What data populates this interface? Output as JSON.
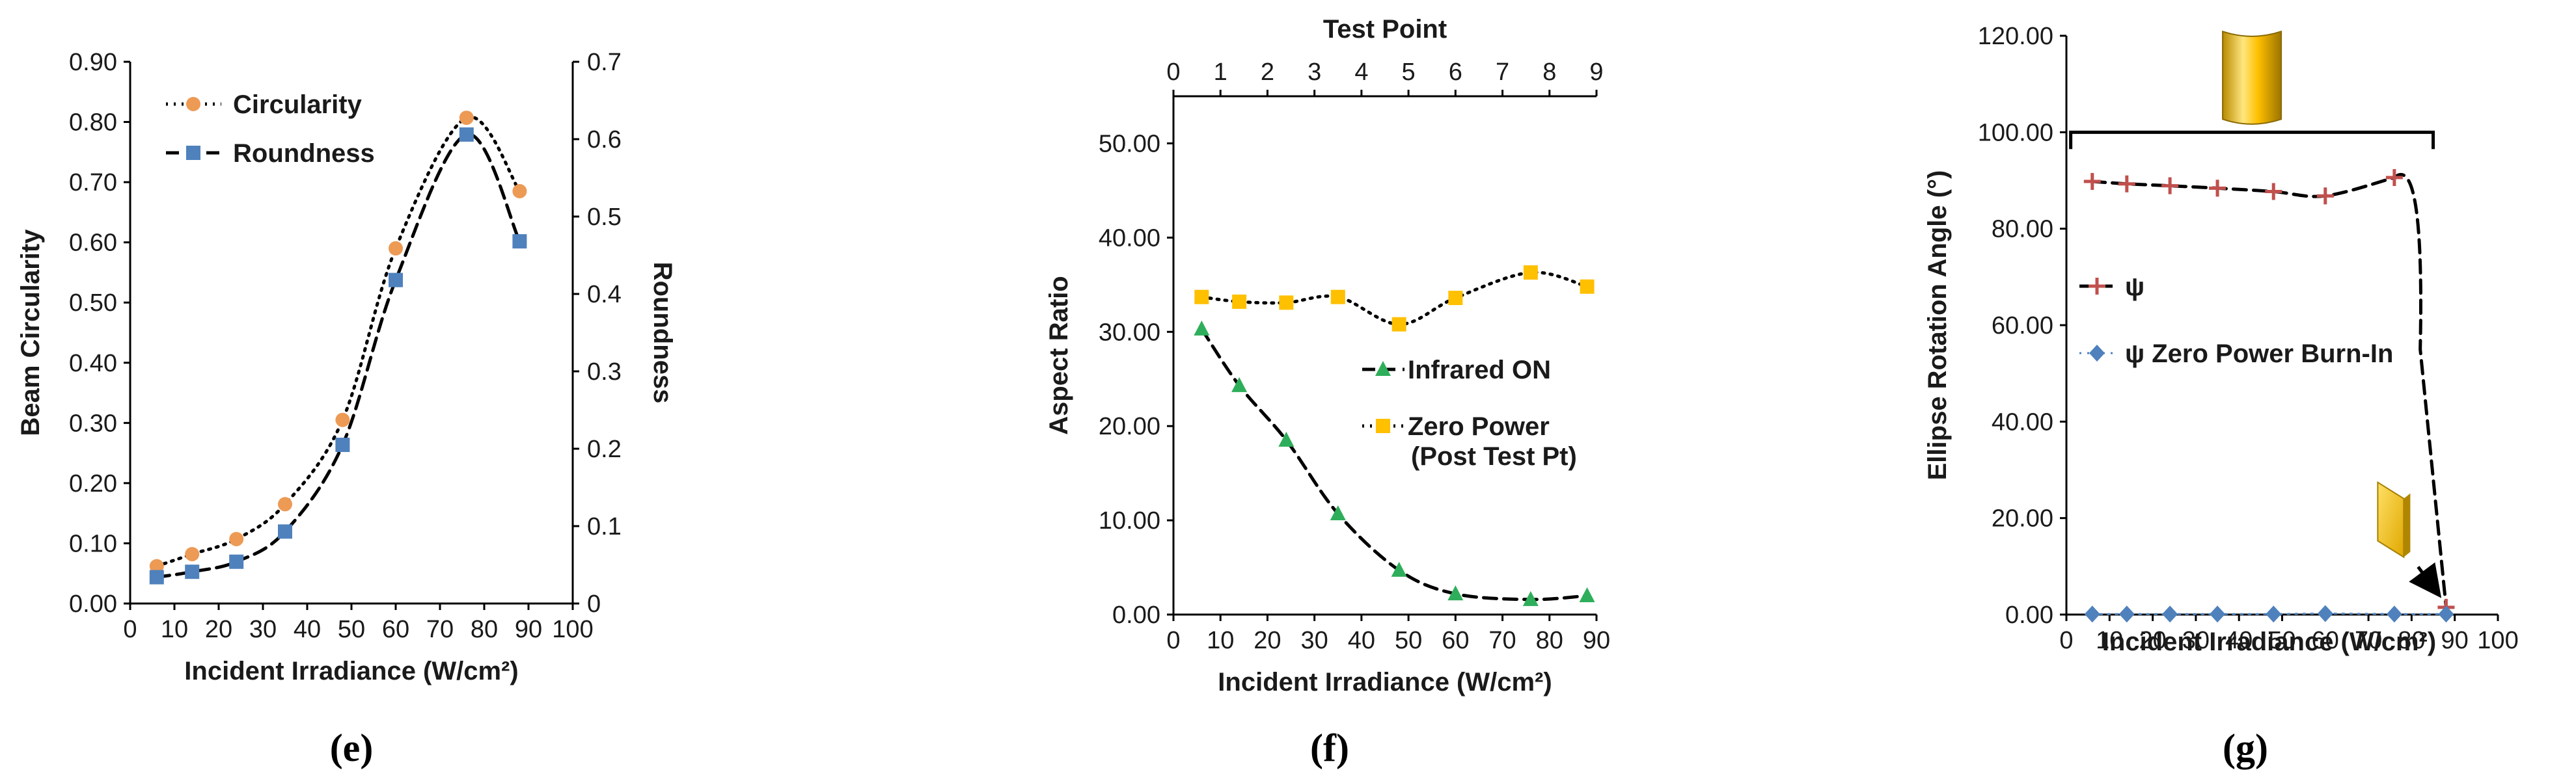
{
  "chart_data": [
    {
      "panel": "(e)",
      "type": "line",
      "xlabel": "Incident Irradiance (W/cm²)",
      "ylabel": "Beam Circularity",
      "y2label": "Roundness",
      "xlim": [
        0,
        100
      ],
      "ylim": [
        0,
        0.9
      ],
      "y2lim": [
        0,
        0.7
      ],
      "x_ticks": [
        "0",
        "10",
        "20",
        "30",
        "40",
        "50",
        "60",
        "70",
        "80",
        "90",
        "100"
      ],
      "y_ticks": [
        "0.00",
        "0.10",
        "0.20",
        "0.30",
        "0.40",
        "0.50",
        "0.60",
        "0.70",
        "0.80",
        "0.90"
      ],
      "y2_ticks": [
        "0",
        "0.1",
        "0.2",
        "0.3",
        "0.4",
        "0.5",
        "0.6",
        "0.7"
      ],
      "legend_position": "top-left",
      "series": [
        {
          "name": "Circularity",
          "axis": "left",
          "color": "#ED9A55",
          "marker": "circle",
          "line": "dotted",
          "x": [
            6,
            14,
            24,
            35,
            48,
            60,
            76,
            88
          ],
          "values": [
            0.062,
            0.082,
            0.107,
            0.165,
            0.305,
            0.59,
            0.807,
            0.685
          ]
        },
        {
          "name": "Roundness",
          "axis": "right",
          "color": "#4F81BD",
          "marker": "square",
          "line": "dashed",
          "x": [
            6,
            14,
            24,
            35,
            48,
            60,
            76,
            88
          ],
          "values": [
            0.034,
            0.041,
            0.054,
            0.093,
            0.205,
            0.418,
            0.606,
            0.468
          ]
        }
      ]
    },
    {
      "panel": "(f)",
      "type": "line",
      "xlabel": "Incident Irradiance (W/cm²)",
      "ylabel": "Aspect Ratio",
      "x2label": "Test Point",
      "xlim": [
        0,
        90
      ],
      "x2lim": [
        0,
        9
      ],
      "ylim": [
        0,
        55
      ],
      "x_ticks": [
        "0",
        "10",
        "20",
        "30",
        "40",
        "50",
        "60",
        "70",
        "80",
        "90"
      ],
      "x2_ticks": [
        "0",
        "1",
        "2",
        "3",
        "4",
        "5",
        "6",
        "7",
        "8",
        "9"
      ],
      "y_ticks": [
        "0.00",
        "10.00",
        "20.00",
        "30.00",
        "40.00",
        "50.00"
      ],
      "legend_position": "center-right",
      "series": [
        {
          "name": "Infrared ON",
          "color": "#2EAE5A",
          "marker": "triangle",
          "line": "dashed",
          "x": [
            6,
            14,
            24,
            35,
            48,
            60,
            76,
            88
          ],
          "values": [
            30.3,
            24.3,
            18.5,
            10.7,
            4.7,
            2.2,
            1.6,
            2.0
          ]
        },
        {
          "name": "Zero Power",
          "name_line2": "(Post Test Pt)",
          "color": "#FFC000",
          "marker": "square",
          "line": "dotted",
          "x": [
            6,
            14,
            24,
            35,
            48,
            60,
            76,
            88
          ],
          "values": [
            33.7,
            33.2,
            33.1,
            33.7,
            30.8,
            33.6,
            36.3,
            34.8
          ]
        }
      ]
    },
    {
      "panel": "(g)",
      "type": "line",
      "xlabel": "Incident Irradiance (W/cm²)",
      "ylabel": "Ellipse Rotation Angle (°)",
      "xlim": [
        0,
        100
      ],
      "ylim": [
        0,
        120
      ],
      "x_ticks": [
        "0",
        "10",
        "20",
        "30",
        "40",
        "50",
        "60",
        "70",
        "80",
        "90",
        "100"
      ],
      "y_ticks": [
        "0.00",
        "20.00",
        "40.00",
        "60.00",
        "80.00",
        "100.00",
        "120.00"
      ],
      "legend_position": "center-left",
      "annotations": [
        "bracket with vertical gold bar icon over 0–80 W/cm²",
        "tilted gold bar icon with arrow pointing to the 88 W/cm² point"
      ],
      "series": [
        {
          "name": "ψ",
          "color": "#C0504D",
          "marker": "plus",
          "line": "dashed",
          "x": [
            6,
            14,
            24,
            35,
            48,
            60,
            76,
            88
          ],
          "values": [
            89.8,
            89.3,
            88.9,
            88.4,
            87.7,
            86.8,
            90.6,
            1.5
          ]
        },
        {
          "name": "ψ Zero Power Burn-In",
          "color": "#4F81BD",
          "marker": "diamond",
          "line": "dotted",
          "x": [
            6,
            14,
            24,
            35,
            48,
            60,
            76,
            88
          ],
          "values": [
            0.1,
            0.1,
            0.1,
            0.1,
            0.1,
            0.2,
            0.1,
            0.1
          ]
        }
      ]
    }
  ],
  "colors": {
    "axis": "#000000",
    "text": "#1a1a1a",
    "gold_light": "#FFE066",
    "gold_dark": "#C89A00",
    "arrow": "#000000"
  }
}
